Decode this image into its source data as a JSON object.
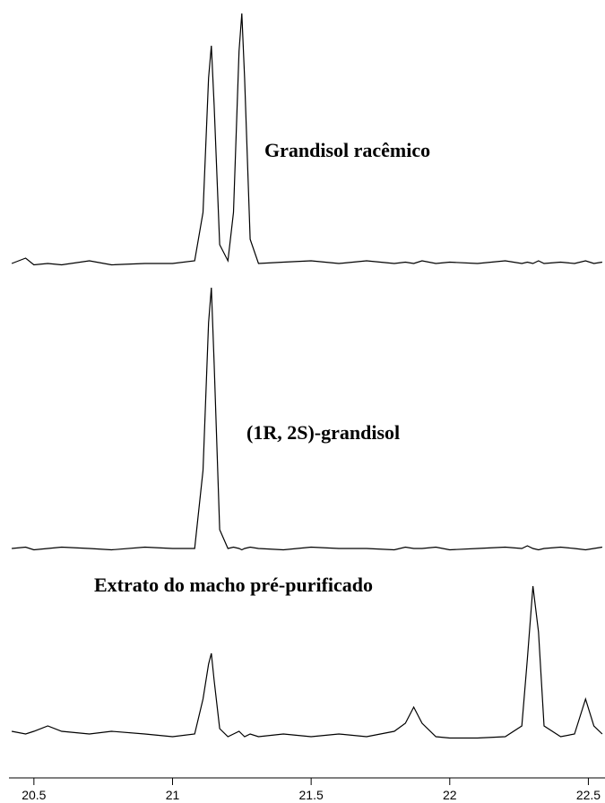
{
  "chart_data": {
    "type": "line",
    "x": [
      20.42,
      20.47,
      20.5,
      20.55,
      20.6,
      20.7,
      20.78,
      20.9,
      21.0,
      21.08,
      21.11,
      21.13,
      21.14,
      21.15,
      21.17,
      21.2,
      21.22,
      21.24,
      21.25,
      21.26,
      21.28,
      21.31,
      21.4,
      21.5,
      21.6,
      21.7,
      21.8,
      21.84,
      21.87,
      21.9,
      21.95,
      22.0,
      22.1,
      22.2,
      22.26,
      22.28,
      22.3,
      22.32,
      22.34,
      22.4,
      22.45,
      22.49,
      22.52,
      22.55
    ],
    "series": [
      {
        "name": "Grandisol racêmico",
        "color": "#000000",
        "values": [
          1,
          3,
          0.5,
          1,
          0.5,
          2,
          0.5,
          1,
          1,
          2,
          20,
          70,
          82,
          60,
          8,
          2,
          20,
          80,
          94,
          70,
          10,
          1,
          1.5,
          2,
          1,
          2,
          1,
          1.5,
          1,
          2,
          1,
          1.5,
          1,
          2,
          1,
          1.5,
          1,
          2,
          1,
          1.5,
          1,
          2,
          1,
          1.5
        ]
      },
      {
        "name": "(1R, 2S)-grandisol",
        "color": "#000000",
        "values": [
          1,
          1.5,
          0.5,
          1,
          1.5,
          1,
          0.5,
          1.5,
          1,
          1,
          30,
          85,
          98,
          70,
          8,
          1,
          1.5,
          1,
          0.5,
          1,
          1.5,
          1,
          0.5,
          1.5,
          1,
          1,
          0.5,
          1.5,
          1,
          1,
          1.5,
          0.5,
          1,
          1.5,
          1,
          2,
          1,
          0.5,
          1,
          1.5,
          1,
          0.5,
          1,
          1.5
        ]
      },
      {
        "name": "Extrato do macho pré-purificado",
        "color": "#000000",
        "values": [
          3,
          2,
          3,
          5,
          3,
          2,
          3,
          2,
          1,
          2,
          15,
          28,
          32,
          22,
          4,
          1,
          2,
          3,
          2,
          1,
          2,
          1,
          2,
          1,
          2,
          1,
          3,
          6,
          12,
          6,
          1,
          0.5,
          0.5,
          1,
          5,
          30,
          57,
          40,
          5,
          1,
          2,
          15,
          5,
          2
        ]
      }
    ],
    "xlim": [
      20.41,
      22.56
    ],
    "xticks": [
      20.5,
      21.0,
      21.5,
      22.0,
      22.5
    ],
    "ylim": [
      0,
      100
    ]
  }
}
